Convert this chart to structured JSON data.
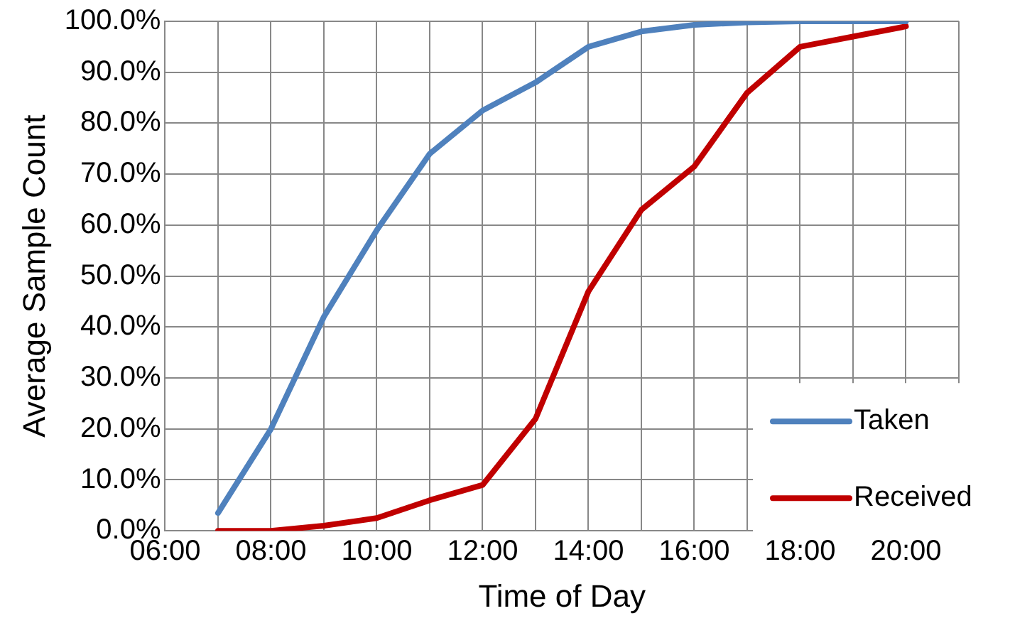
{
  "chart_data": {
    "type": "line",
    "xlabel": "Time of Day",
    "ylabel": "Average Sample Count",
    "x": [
      7,
      8,
      9,
      10,
      11,
      12,
      13,
      14,
      15,
      16,
      17,
      18,
      19,
      20
    ],
    "series": [
      {
        "name": "Taken",
        "color": "#4f81bd",
        "values": [
          3.5,
          20,
          42,
          59,
          74,
          82.5,
          88,
          95,
          98,
          99.3,
          99.8,
          100,
          100,
          100
        ]
      },
      {
        "name": "Received",
        "color": "#c00000",
        "values": [
          0,
          0,
          1,
          2.5,
          6,
          9,
          22,
          47,
          63,
          71.5,
          86,
          95,
          97,
          99
        ]
      }
    ],
    "xlim": [
      6,
      21
    ],
    "xticks": [
      {
        "value": 6,
        "label": "06:00"
      },
      {
        "value": 7,
        "label": null
      },
      {
        "value": 8,
        "label": "08:00"
      },
      {
        "value": 9,
        "label": null
      },
      {
        "value": 10,
        "label": "10:00"
      },
      {
        "value": 11,
        "label": null
      },
      {
        "value": 12,
        "label": "12:00"
      },
      {
        "value": 13,
        "label": null
      },
      {
        "value": 14,
        "label": "14:00"
      },
      {
        "value": 15,
        "label": null
      },
      {
        "value": 16,
        "label": "16:00"
      },
      {
        "value": 17,
        "label": null
      },
      {
        "value": 18,
        "label": "18:00"
      },
      {
        "value": 19,
        "label": null
      },
      {
        "value": 20,
        "label": "20:00"
      },
      {
        "value": 21,
        "label": null
      }
    ],
    "ylim": [
      0,
      100
    ],
    "yticks": [
      {
        "value": 0,
        "label": "0.0%"
      },
      {
        "value": 10,
        "label": "10.0%"
      },
      {
        "value": 20,
        "label": "20.0%"
      },
      {
        "value": 30,
        "label": "30.0%"
      },
      {
        "value": 40,
        "label": "40.0%"
      },
      {
        "value": 50,
        "label": "50.0%"
      },
      {
        "value": 60,
        "label": "60.0%"
      },
      {
        "value": 70,
        "label": "70.0%"
      },
      {
        "value": 80,
        "label": "80.0%"
      },
      {
        "value": 90,
        "label": "90.0%"
      },
      {
        "value": 100,
        "label": "100.0%"
      }
    ],
    "grid": true,
    "legend": "bottom right",
    "marker": "none",
    "line_style": "solid"
  }
}
